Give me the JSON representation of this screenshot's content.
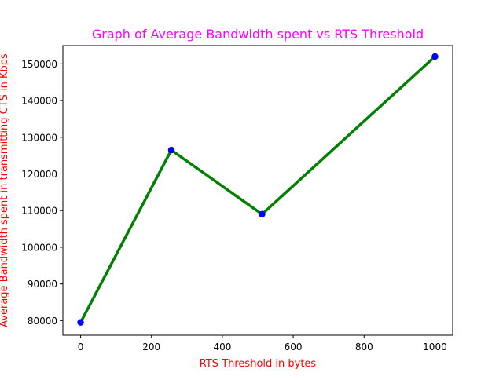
{
  "chart_data": {
    "type": "line",
    "title": "Graph of Average Bandwidth spent vs RTS Threshold",
    "xlabel": "RTS Threshold in bytes",
    "ylabel": "Average Bandwidth spent in transmitting CTS in Kbps",
    "x": [
      0,
      256,
      512,
      1000
    ],
    "series": [
      {
        "values": [
          79500,
          126500,
          109000,
          152000
        ],
        "line_color": "#008000",
        "marker_color": "#0000ff"
      }
    ],
    "xlim": [
      -50,
      1050
    ],
    "ylim": [
      76000,
      155000
    ],
    "x_ticks": [
      0,
      200,
      400,
      600,
      800,
      1000
    ],
    "y_ticks": [
      80000,
      90000,
      100000,
      110000,
      120000,
      130000,
      140000,
      150000
    ],
    "x_tick_labels": [
      "0",
      "200",
      "400",
      "600",
      "800",
      "1000"
    ],
    "y_tick_labels": [
      "80000",
      "90000",
      "100000",
      "110000",
      "120000",
      "130000",
      "140000",
      "150000"
    ],
    "grid": false,
    "title_color": "#ff00ff",
    "label_color": "#ff0000"
  }
}
